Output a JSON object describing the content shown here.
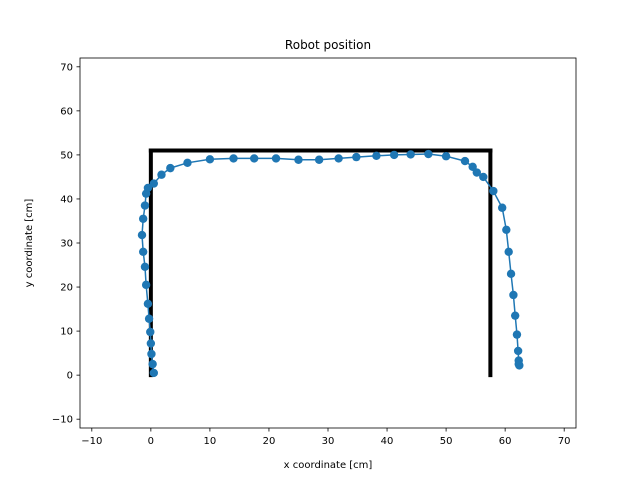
{
  "chart_data": {
    "type": "line",
    "title": "Robot position",
    "xlabel": "x coordinate [cm]",
    "ylabel": "y coordinate [cm]",
    "xlim": [
      -12,
      72
    ],
    "ylim": [
      -12,
      72
    ],
    "xticks": [
      -10,
      0,
      10,
      20,
      30,
      40,
      50,
      60,
      70
    ],
    "yticks": [
      -10,
      0,
      10,
      20,
      30,
      40,
      50,
      60,
      70
    ],
    "grid": false,
    "legend": "none",
    "colors": {
      "trajectory": "#1f77b4",
      "walls": "#000000"
    },
    "walls": [
      {
        "x": [
          0,
          0
        ],
        "y": [
          0,
          51
        ]
      },
      {
        "x": [
          0,
          57.5
        ],
        "y": [
          51,
          51
        ]
      },
      {
        "x": [
          57.5,
          57.5
        ],
        "y": [
          51,
          0
        ]
      }
    ],
    "series": [
      {
        "x": [
          0.5,
          0.3,
          0.1,
          0.0,
          -0.1,
          -0.3,
          -0.5,
          -0.8,
          -1.0,
          -1.3,
          -1.5,
          -1.3,
          -1.0,
          -0.8,
          -0.5,
          0.5,
          1.8,
          3.3,
          6.2,
          10.0,
          14.0,
          17.5,
          21.2,
          25.0,
          28.5,
          31.8,
          34.8,
          38.2,
          41.2,
          44.0,
          47.0,
          50.0,
          53.2,
          54.5,
          55.2,
          56.3,
          58.0,
          59.5,
          60.2,
          60.6,
          61.0,
          61.4,
          61.7,
          62.0,
          62.2,
          62.3,
          62.3,
          62.4
        ],
        "y": [
          0.5,
          2.5,
          4.8,
          7.2,
          9.8,
          12.8,
          16.2,
          20.5,
          24.6,
          28.0,
          31.8,
          35.5,
          38.5,
          41.2,
          42.5,
          43.5,
          45.5,
          47.0,
          48.2,
          49.0,
          49.2,
          49.2,
          49.2,
          48.9,
          48.9,
          49.2,
          49.5,
          49.8,
          50.0,
          50.1,
          50.2,
          49.7,
          48.6,
          47.3,
          46.0,
          45.0,
          41.8,
          38.0,
          33.0,
          28.0,
          23.0,
          18.2,
          13.5,
          9.2,
          5.5,
          3.3,
          2.5,
          2.2
        ]
      }
    ]
  }
}
